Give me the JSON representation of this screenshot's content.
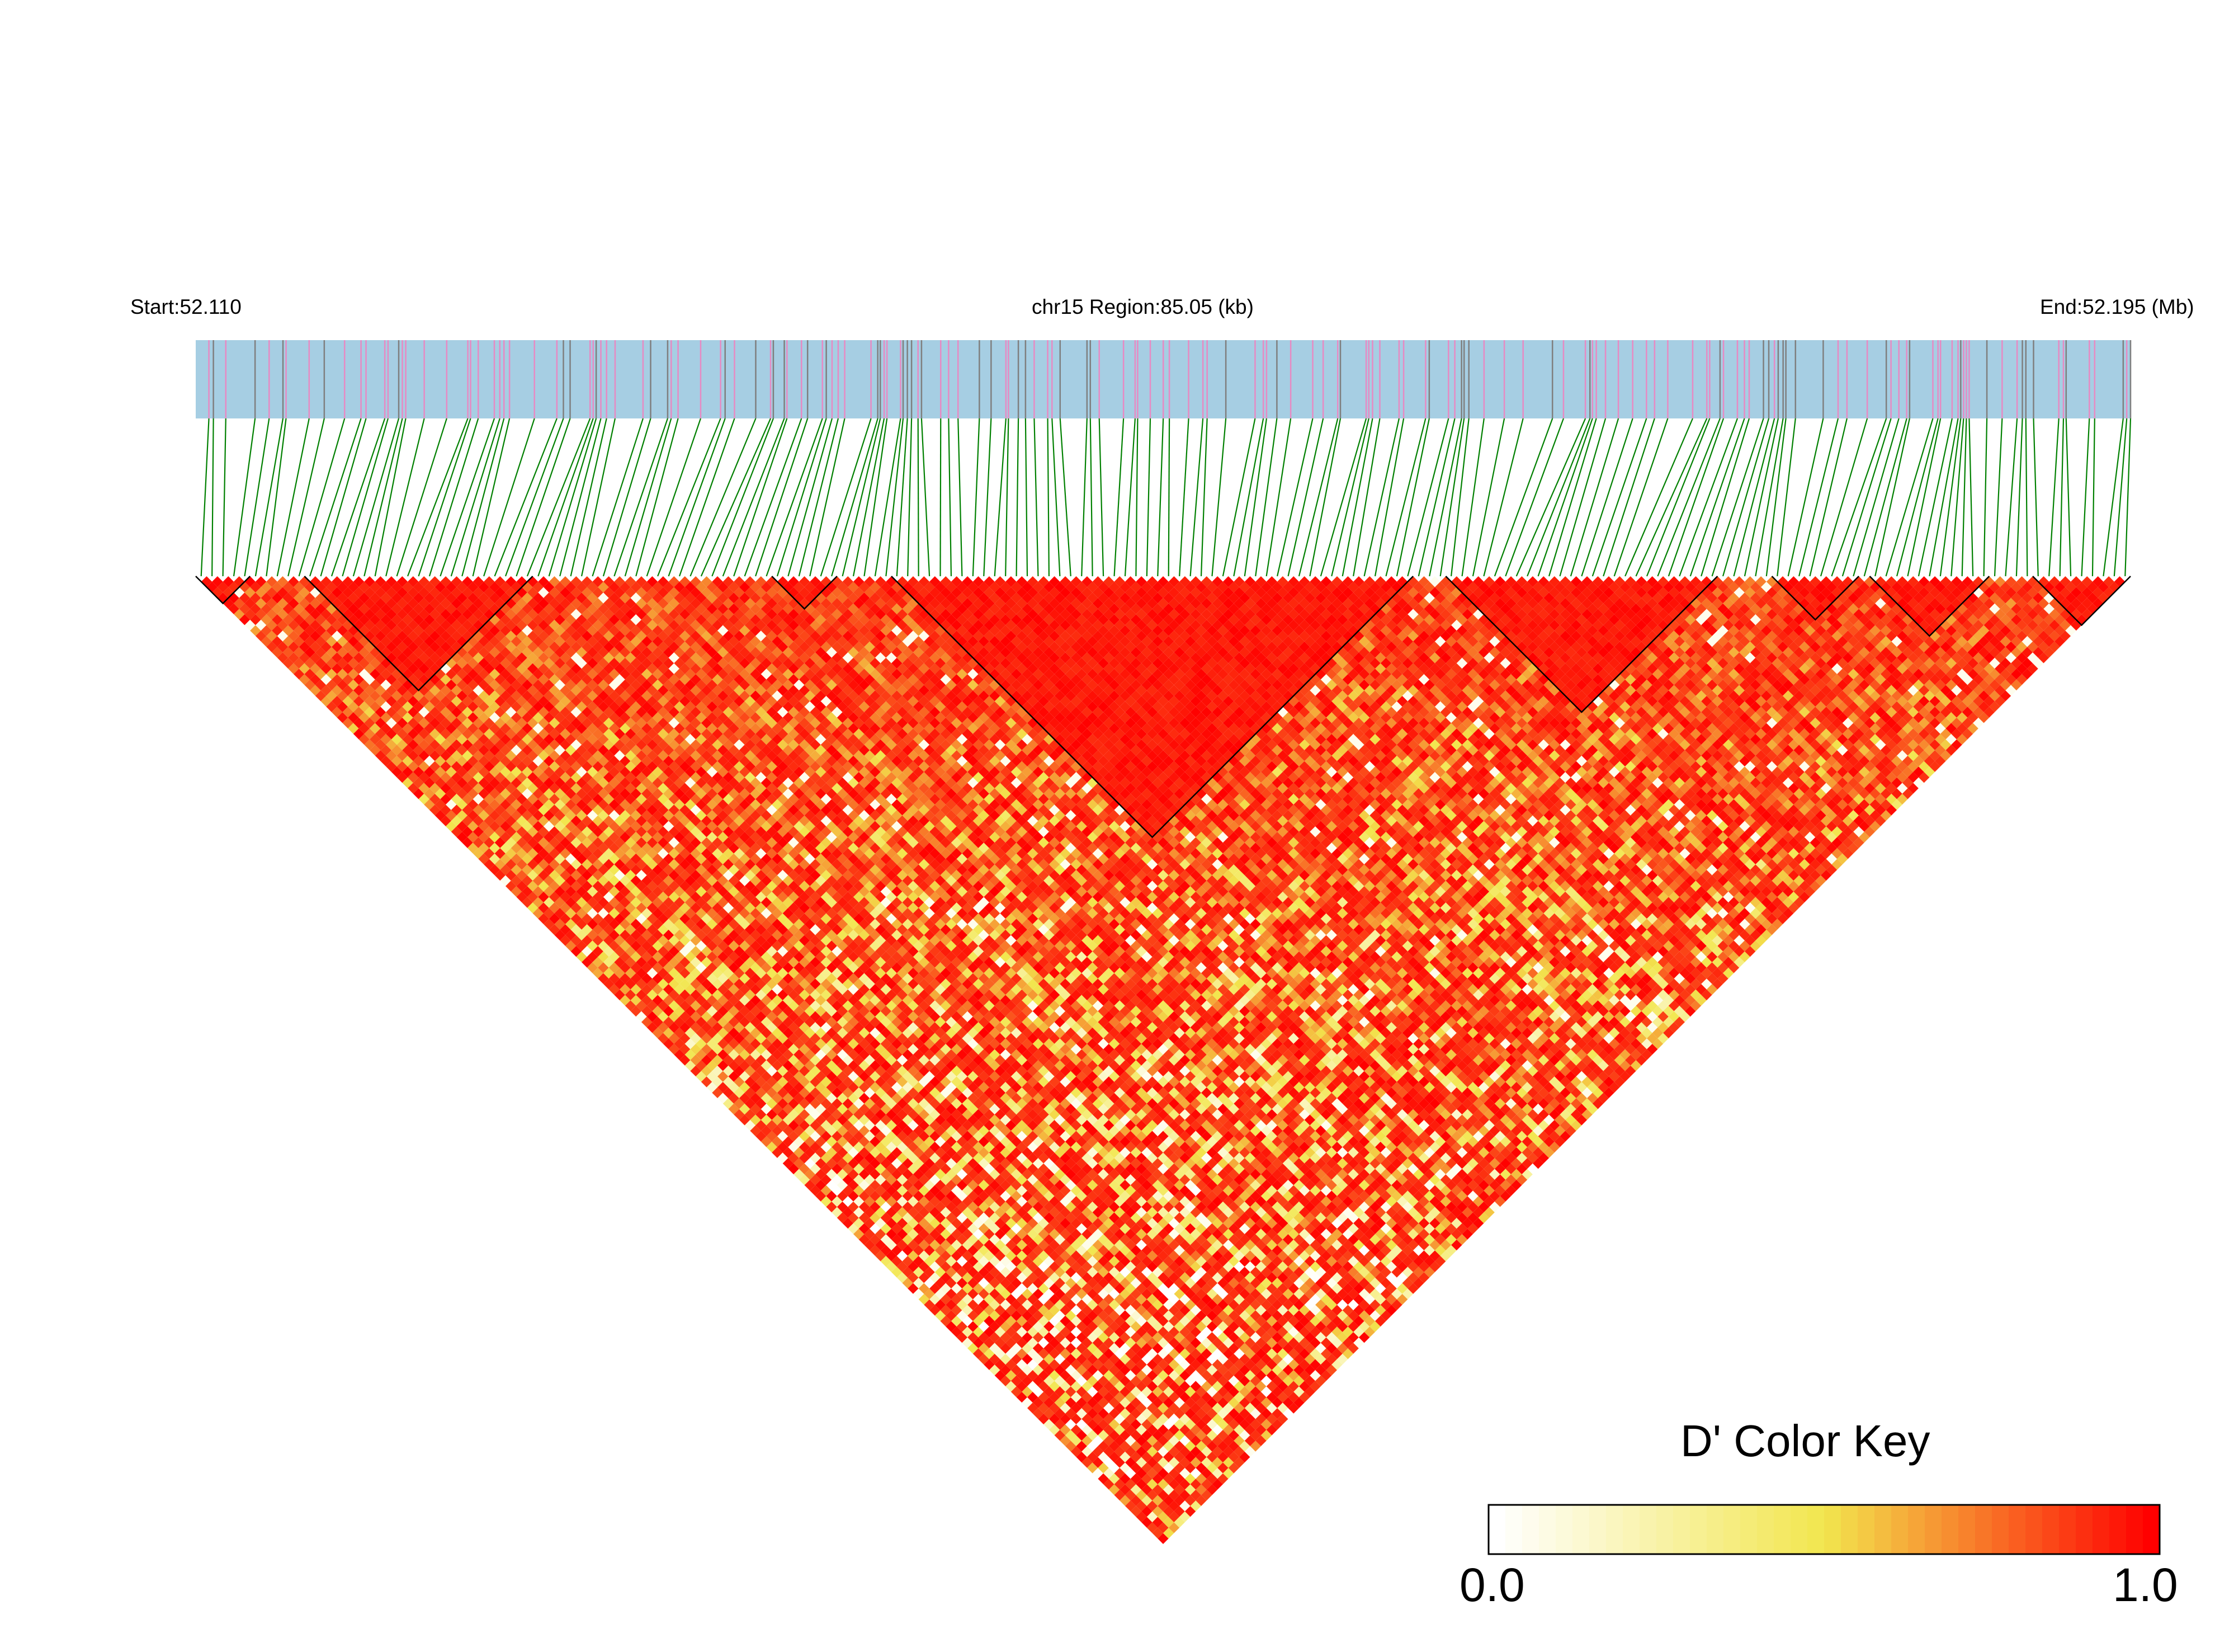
{
  "header": {
    "start_label": "Start:52.110",
    "region_label": "chr15 Region:85.05 (kb)",
    "end_label": "End:52.195 (Mb)"
  },
  "legend": {
    "title": "D' Color Key",
    "min_label": "0.0",
    "max_label": "1.0",
    "gradient_colors": [
      "#ffffff",
      "#f2e64e",
      "#ff0000"
    ]
  },
  "colors": {
    "track_fill": "#a6cee3",
    "snp_tick_highlight": "#e78ac3",
    "snp_tick_default": "#7f7f7f",
    "connector_line": "#008000",
    "block_outline": "#000000",
    "heatmap_high": "#ff0000",
    "heatmap_mid": "#f2e64e",
    "heatmap_low": "#ffffff"
  },
  "chart_data": {
    "type": "heatmap",
    "description_kind": "linkage-disequilibrium triangle",
    "chromosome": "chr15",
    "region_start_mb": 52.11,
    "region_end_mb": 52.195,
    "region_size_kb": 85.05,
    "metric": "D'",
    "value_range": [
      0.0,
      1.0
    ],
    "snp_count": 178,
    "ld_blocks_snp_index_ranges": [
      [
        0,
        5
      ],
      [
        10,
        31
      ],
      [
        53,
        59
      ],
      [
        64,
        112
      ],
      [
        115,
        140
      ],
      [
        145,
        153
      ],
      [
        154,
        165
      ],
      [
        169,
        178
      ]
    ]
  }
}
